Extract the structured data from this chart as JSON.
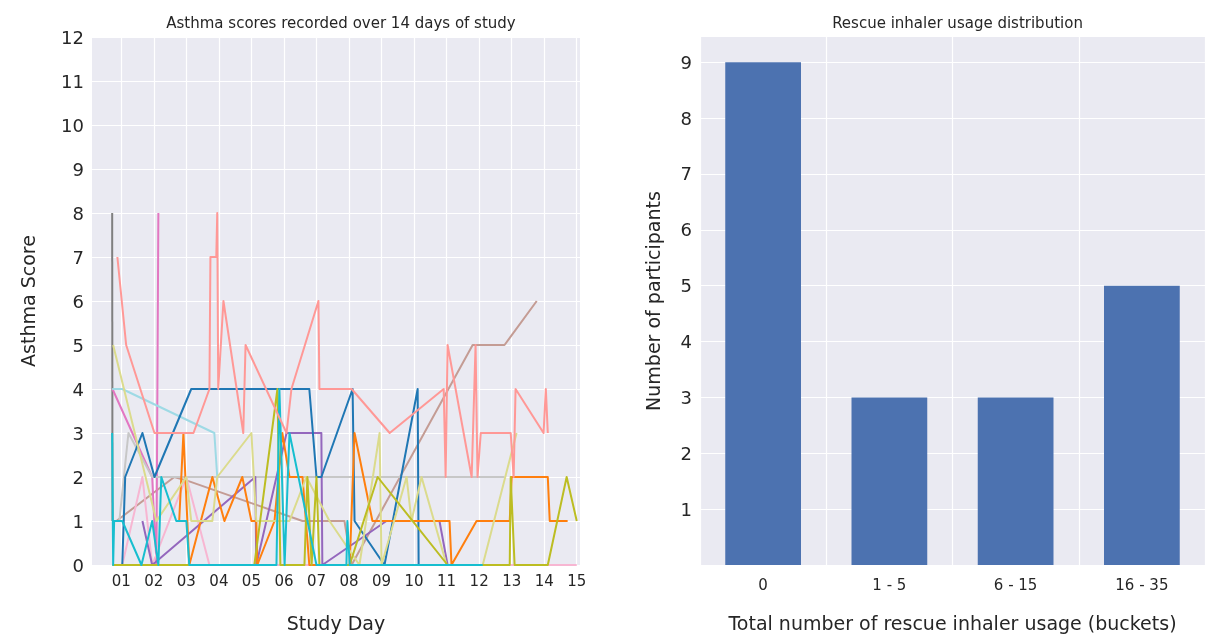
{
  "chart_data": [
    {
      "type": "line",
      "title": "Asthma scores recorded over 14 days of study",
      "xlabel": "Study Day",
      "ylabel": "Asthma Score",
      "grid": true,
      "marker": "none",
      "xlim": [
        0.1,
        15.1
      ],
      "xticks": [
        {
          "value": 1,
          "label": "01"
        },
        {
          "value": 2,
          "label": "02"
        },
        {
          "value": 3,
          "label": "03"
        },
        {
          "value": 4,
          "label": "04"
        },
        {
          "value": 5,
          "label": "05"
        },
        {
          "value": 6,
          "label": "06"
        },
        {
          "value": 7,
          "label": "07"
        },
        {
          "value": 8,
          "label": "08"
        },
        {
          "value": 9,
          "label": "09"
        },
        {
          "value": 10,
          "label": "10"
        },
        {
          "value": 11,
          "label": "11"
        },
        {
          "value": 12,
          "label": "12"
        },
        {
          "value": 13,
          "label": "13"
        },
        {
          "value": 14,
          "label": "14"
        },
        {
          "value": 15,
          "label": "15"
        }
      ],
      "ylim": [
        0,
        12
      ],
      "yticks": [
        0,
        1,
        2,
        3,
        4,
        5,
        6,
        7,
        8,
        9,
        10,
        11,
        12
      ],
      "series": [
        {
          "color": "#7f7f7f",
          "x": [
            0.72,
            0.73
          ],
          "values": [
            8,
            1
          ]
        },
        {
          "color": "#c49c94",
          "x": [
            0.85,
            2.63,
            3.09,
            6.57,
            7.86,
            8.08,
            11.8,
            12.78,
            13.77
          ],
          "values": [
            1,
            2,
            1.9,
            1,
            1,
            0,
            5,
            5,
            6
          ]
        },
        {
          "color": "#e377c2",
          "x": [
            0.73,
            1.95,
            2.08,
            2.14
          ],
          "values": [
            4,
            2,
            0,
            8
          ]
        },
        {
          "color": "#c7c7c7",
          "x": [
            0.94,
            1.22,
            1.95,
            12.78
          ],
          "values": [
            1,
            3,
            2,
            2
          ]
        },
        {
          "color": "#9edae5",
          "x": [
            0.72,
            1.03,
            3.86,
            3.95
          ],
          "values": [
            4,
            4,
            3,
            2
          ]
        },
        {
          "color": "#f7b6d2",
          "x": [
            1.03,
            1.65,
            1.95,
            3.0,
            3.71,
            15.0
          ],
          "values": [
            0,
            2,
            0,
            2,
            0,
            0
          ]
        },
        {
          "color": "#9467bd",
          "x": [
            1.65,
            1.95,
            5.12,
            5.15,
            6.08,
            7.15,
            7.18,
            9.15,
            10.78,
            11.03
          ],
          "values": [
            1,
            0,
            2,
            0,
            3,
            3,
            0,
            1,
            1,
            0
          ]
        },
        {
          "color": "#1f77b4",
          "x": [
            1.03,
            1.12,
            1.65,
            2.02,
            3.15,
            6.78,
            7.0,
            7.15,
            8.11,
            8.17,
            9.09,
            10.11,
            10.14
          ],
          "values": [
            0,
            2,
            3,
            2,
            4,
            4,
            2,
            2,
            4,
            1,
            0,
            4,
            0
          ]
        },
        {
          "color": "#ff7f0e",
          "x": [
            2.78,
            2.91,
            3.09,
            3.8,
            4.17,
            4.72,
            5.0,
            5.15,
            5.18,
            5.71,
            5.95,
            6.17,
            6.57,
            6.78,
            8.02,
            8.17,
            8.72,
            11.09,
            11.15,
            11.92,
            12.94,
            13.0,
            14.11,
            14.17,
            14.72
          ],
          "values": [
            1,
            3,
            0,
            2,
            1,
            2,
            1,
            1,
            0,
            1,
            3,
            2,
            2,
            0,
            0,
            3,
            1,
            1,
            0,
            1,
            1,
            2,
            2,
            1,
            1
          ]
        },
        {
          "color": "#dbdb8d",
          "x": [
            0.75,
            2.08,
            3.0,
            3.15,
            3.8,
            3.95,
            5.0,
            5.15,
            6.17,
            6.69,
            7.4,
            8.32,
            8.94,
            9.0,
            9.77,
            9.92,
            10.23,
            11.0,
            12.11,
            13.15
          ],
          "values": [
            5,
            1,
            2,
            1,
            1,
            2,
            3,
            1,
            1,
            2,
            1,
            0,
            3,
            0,
            2,
            1,
            2,
            0,
            0,
            3
          ]
        },
        {
          "color": "#bcbd22",
          "x": [
            0.72,
            5.09,
            5.8,
            5.89,
            6.63,
            6.72,
            6.85,
            7.0,
            7.09,
            8.02,
            8.88,
            11.03,
            12.94,
            12.97,
            13.09,
            14.11,
            14.69,
            15.0
          ],
          "values": [
            0,
            0,
            4,
            0,
            0,
            2,
            0,
            2,
            0,
            0,
            2,
            0,
            0,
            2,
            0,
            0,
            2,
            1
          ]
        },
        {
          "color": "#17becf",
          "x": [
            0.72,
            0.75,
            0.78,
            1.03,
            1.62,
            1.95,
            2.14,
            2.23,
            2.69,
            3.0,
            3.09,
            5.77,
            5.86,
            6.02,
            6.17,
            7.0,
            7.92,
            7.95,
            8.02,
            12.11
          ],
          "values": [
            3,
            0,
            1,
            1,
            0,
            1,
            0,
            2,
            1,
            1,
            0,
            0,
            4,
            0,
            3,
            0,
            0,
            1,
            0,
            0
          ]
        },
        {
          "color": "#ff9896",
          "x": [
            0.88,
            1.15,
            2.02,
            3.22,
            3.71,
            3.74,
            3.92,
            3.95,
            3.98,
            4.14,
            4.75,
            4.82,
            6.08,
            6.23,
            7.06,
            7.09,
            8.08,
            9.25,
            10.91,
            10.97,
            11.03,
            11.77,
            11.89,
            11.95,
            12.05,
            12.97,
            13.06,
            13.12,
            13.98,
            14.05,
            14.11
          ],
          "values": [
            7,
            5,
            3,
            3,
            4,
            7,
            7,
            8,
            4,
            6,
            3,
            5,
            3,
            4,
            6,
            4,
            4,
            3,
            4,
            2,
            5,
            2,
            5,
            2,
            3,
            3,
            2,
            4,
            3,
            4,
            3
          ]
        }
      ]
    },
    {
      "type": "bar",
      "title": "Rescue inhaler usage distribution",
      "xlabel": "Total number of rescue inhaler usage (buckets)",
      "ylabel": "Number of participants",
      "grid": true,
      "categories": [
        "0",
        "1 - 5",
        "6 - 15",
        "16 - 35"
      ],
      "values": [
        9,
        3,
        3,
        5
      ],
      "color": "#4c72b0",
      "ylim": [
        0,
        9.45
      ],
      "yticks": [
        1,
        2,
        3,
        4,
        5,
        6,
        7,
        8,
        9
      ]
    }
  ]
}
